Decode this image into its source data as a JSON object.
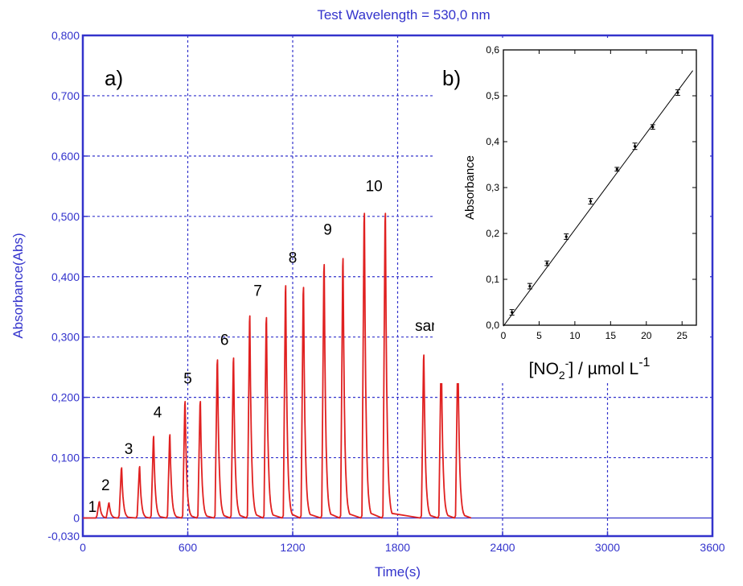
{
  "chart_data": [
    {
      "type": "line",
      "title": "Test Wavelength = 530,0 nm",
      "panel_label": "a)",
      "xlabel": "Time(s)",
      "ylabel": "Absorbance(Abs)",
      "xlim": [
        0,
        3600
      ],
      "ylim": [
        -0.03,
        0.8
      ],
      "grid": true,
      "x_ticks": [
        "0",
        "600",
        "1200",
        "1800",
        "2400",
        "3000",
        "3600"
      ],
      "y_ticks": [
        "-0,030",
        "0",
        "0,100",
        "0,200",
        "0,300",
        "0,400",
        "0,500",
        "0,600",
        "0,700",
        "0,800"
      ],
      "colors": {
        "axis": "#3333cc",
        "grid": "#3333cc",
        "series": "#e02020"
      },
      "series": [
        {
          "peaks": [
            {
              "x": 95,
              "y": 0.027
            },
            {
              "x": 150,
              "y": 0.025
            },
            {
              "x": 222,
              "y": 0.083
            },
            {
              "x": 325,
              "y": 0.085
            },
            {
              "x": 405,
              "y": 0.135
            },
            {
              "x": 498,
              "y": 0.138
            },
            {
              "x": 585,
              "y": 0.193
            },
            {
              "x": 672,
              "y": 0.193
            },
            {
              "x": 770,
              "y": 0.262
            },
            {
              "x": 862,
              "y": 0.265
            },
            {
              "x": 955,
              "y": 0.335
            },
            {
              "x": 1050,
              "y": 0.332
            },
            {
              "x": 1160,
              "y": 0.385
            },
            {
              "x": 1262,
              "y": 0.382
            },
            {
              "x": 1380,
              "y": 0.42
            },
            {
              "x": 1488,
              "y": 0.43
            },
            {
              "x": 1610,
              "y": 0.505
            },
            {
              "x": 1730,
              "y": 0.505
            },
            {
              "x": 1950,
              "y": 0.27
            },
            {
              "x": 2050,
              "y": 0.27
            },
            {
              "x": 2145,
              "y": 0.27
            }
          ],
          "x_end": 2220,
          "baseline": 0.0
        }
      ],
      "annotations": [
        {
          "text": "1",
          "x": 55,
          "y": 0.01
        },
        {
          "text": "2",
          "x": 130,
          "y": 0.046
        },
        {
          "text": "3",
          "x": 262,
          "y": 0.106
        },
        {
          "text": "4",
          "x": 428,
          "y": 0.167
        },
        {
          "text": "5",
          "x": 600,
          "y": 0.223
        },
        {
          "text": "6",
          "x": 810,
          "y": 0.287
        },
        {
          "text": "7",
          "x": 1000,
          "y": 0.368
        },
        {
          "text": "8",
          "x": 1200,
          "y": 0.423
        },
        {
          "text": "9",
          "x": 1400,
          "y": 0.47
        },
        {
          "text": "10",
          "x": 1665,
          "y": 0.542
        },
        {
          "text": "sample",
          "x": 2040,
          "y": 0.31
        }
      ]
    },
    {
      "type": "scatter",
      "panel_label": "b)",
      "xlabel": "[NO2-] / µmol L-1",
      "ylabel": "Absorbance",
      "xlim": [
        0,
        27
      ],
      "ylim": [
        0.0,
        0.6
      ],
      "grid": false,
      "x_ticks": [
        "0",
        "5",
        "10",
        "15",
        "20",
        "25"
      ],
      "y_ticks": [
        "0,0",
        "0,1",
        "0,2",
        "0,3",
        "0,4",
        "0,5",
        "0,6"
      ],
      "x": [
        1.2,
        3.7,
        6.1,
        8.8,
        12.2,
        15.9,
        18.4,
        20.9,
        24.4
      ],
      "y": [
        0.028,
        0.085,
        0.135,
        0.193,
        0.27,
        0.34,
        0.39,
        0.432,
        0.507
      ],
      "error": [
        0.006,
        0.006,
        0.005,
        0.006,
        0.006,
        0.004,
        0.007,
        0.005,
        0.006
      ],
      "fit_line": {
        "x": [
          0,
          26.5
        ],
        "y": [
          -0.002,
          0.555
        ]
      }
    }
  ]
}
